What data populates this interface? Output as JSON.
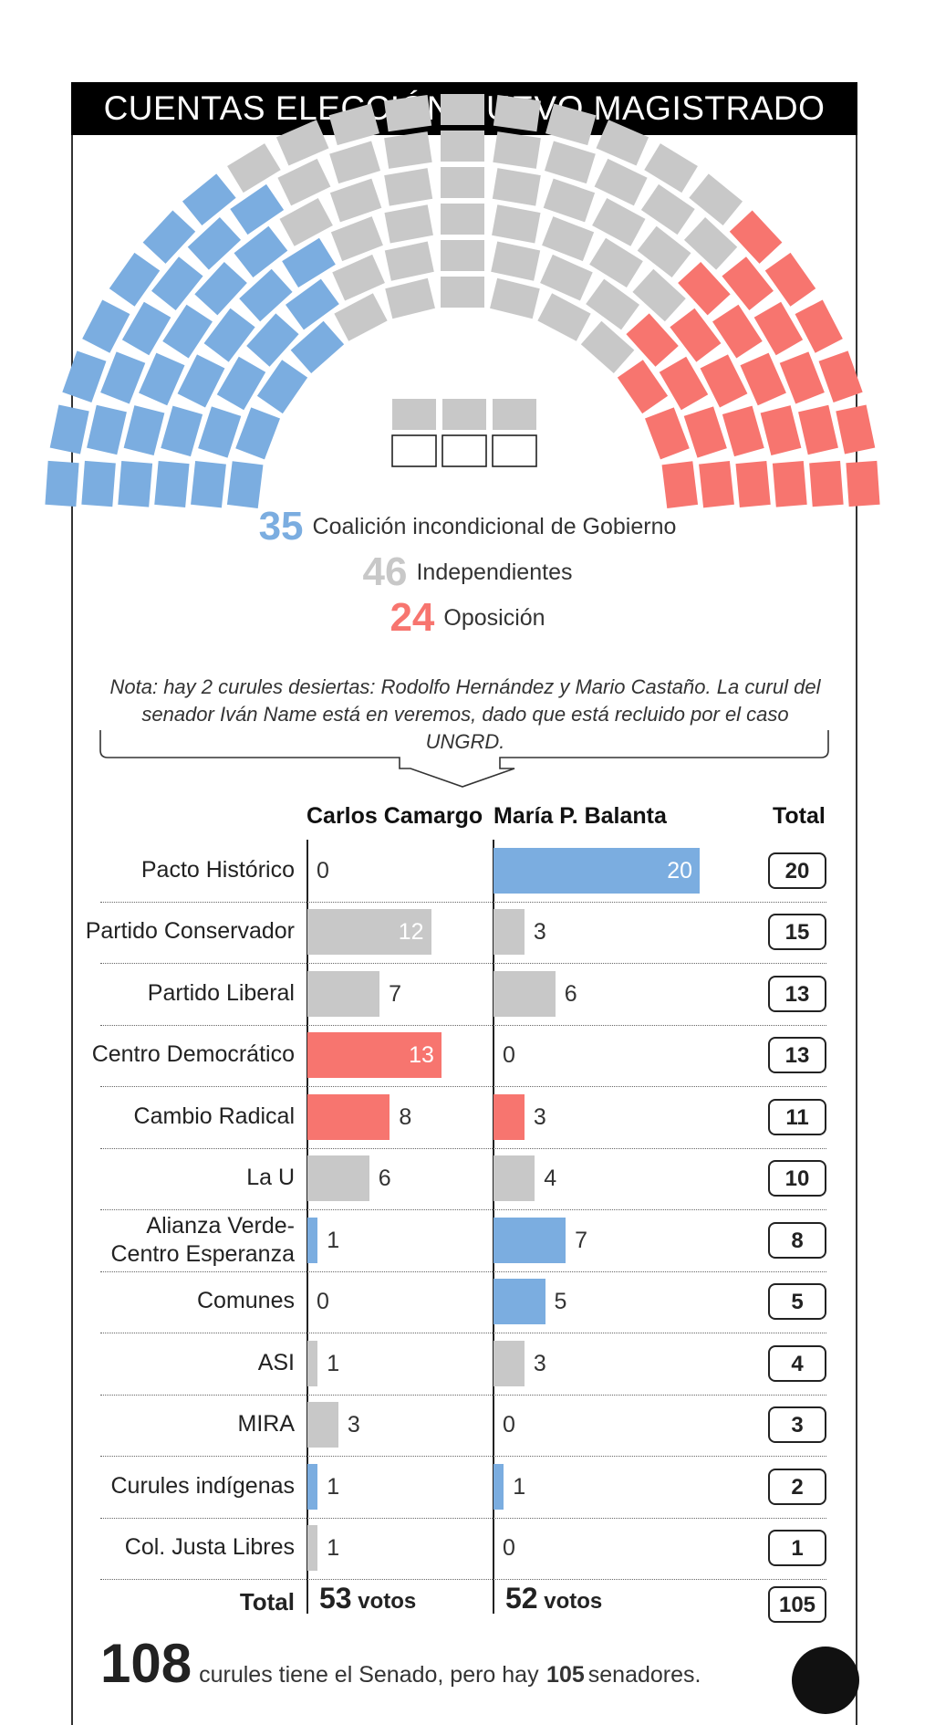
{
  "title": "CUENTAS ELECCIÓN NUEVO MAGISTRADO",
  "colors": {
    "gobierno": "#7bade0",
    "independientes": "#c8c8c8",
    "oposicion": "#f7756f",
    "text": "#222222"
  },
  "hemicycle": {
    "groups": [
      {
        "count": "35",
        "label": "Coalición incondicional de Gobierno",
        "color": "#7bade0"
      },
      {
        "count": "46",
        "label": "Independientes",
        "color": "#c8c8c8"
      },
      {
        "count": "24",
        "label": "Oposición",
        "color": "#f7756f"
      }
    ],
    "empty_seats": 3
  },
  "note": {
    "line1": "Nota: hay 2 curules desiertas: Rodolfo Hernández y Mario Castaño. La curul del",
    "line2": "senador Iván Name está en veremos, dado que está recluido por el caso UNGRD."
  },
  "chart_data": {
    "type": "bar",
    "columns": [
      "Carlos Camargo",
      "María P. Balanta",
      "Total"
    ],
    "categories": [
      "Pacto Histórico",
      "Partido Conservador",
      "Partido Liberal",
      "Centro Democrático",
      "Cambio Radical",
      "La U",
      "Alianza Verde-Centro Esperanza",
      "Comunes",
      "ASI",
      "MIRA",
      "Curules indígenas",
      "Col. Justa Libres"
    ],
    "series": [
      {
        "name": "Carlos Camargo",
        "values": [
          0,
          12,
          7,
          13,
          8,
          6,
          1,
          0,
          1,
          3,
          1,
          1
        ]
      },
      {
        "name": "María P. Balanta",
        "values": [
          20,
          3,
          6,
          0,
          3,
          4,
          7,
          5,
          3,
          0,
          1,
          0
        ]
      }
    ],
    "bar_colors": {
      "Carlos Camargo": [
        "#c8c8c8",
        "#c8c8c8",
        "#c8c8c8",
        "#f7756f",
        "#f7756f",
        "#c8c8c8",
        "#7bade0",
        "#c8c8c8",
        "#c8c8c8",
        "#c8c8c8",
        "#7bade0",
        "#c8c8c8"
      ],
      "María P. Balanta": [
        "#7bade0",
        "#c8c8c8",
        "#c8c8c8",
        "#c8c8c8",
        "#f7756f",
        "#c8c8c8",
        "#7bade0",
        "#7bade0",
        "#c8c8c8",
        "#c8c8c8",
        "#7bade0",
        "#c8c8c8"
      ]
    },
    "totals": [
      20,
      15,
      13,
      13,
      11,
      10,
      8,
      5,
      4,
      3,
      2,
      1
    ],
    "total_row": {
      "label": "Total",
      "camargo": "53",
      "balanta": "52",
      "votes_word": "votos",
      "total": "105"
    },
    "xlim": [
      0,
      20
    ]
  },
  "footer": {
    "big": "108",
    "text1": "curules tiene el Senado, pero hay",
    "bold": "105",
    "text2": "senadores."
  }
}
